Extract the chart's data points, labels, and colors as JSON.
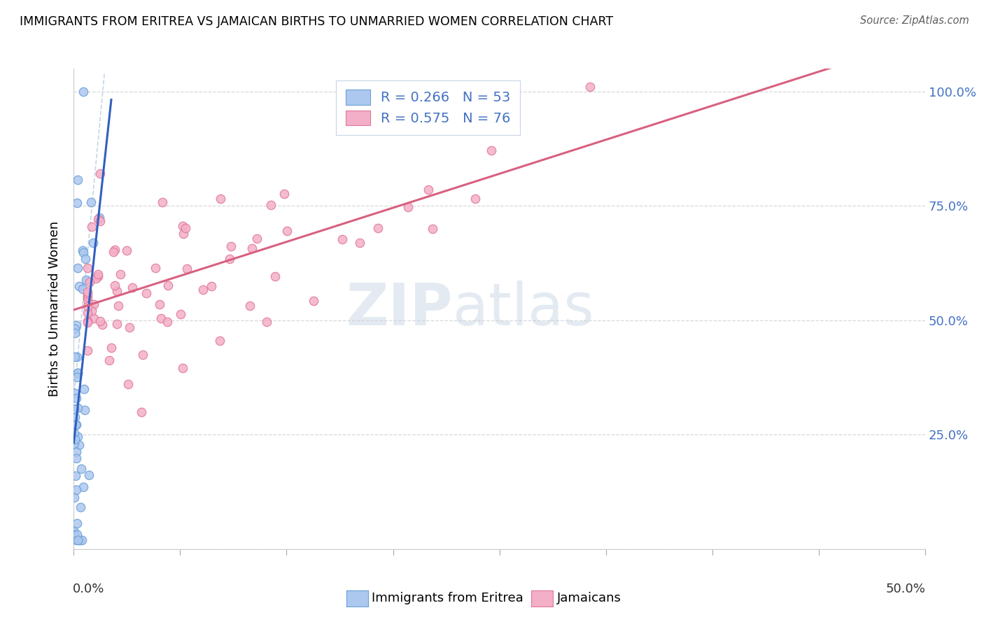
{
  "title": "IMMIGRANTS FROM ERITREA VS JAMAICAN BIRTHS TO UNMARRIED WOMEN CORRELATION CHART",
  "source": "Source: ZipAtlas.com",
  "ylabel": "Births to Unmarried Women",
  "yticks": [
    0.0,
    0.25,
    0.5,
    0.75,
    1.0
  ],
  "ytick_labels": [
    "",
    "25.0%",
    "50.0%",
    "75.0%",
    "100.0%"
  ],
  "xlim": [
    0.0,
    0.5
  ],
  "ylim": [
    0.0,
    1.05
  ],
  "xtick_left": "0.0%",
  "xtick_right": "50.0%",
  "legend_label_eritrea": "R = 0.266   N = 53",
  "legend_label_jamaican": "R = 0.575   N = 76",
  "bottom_label_eritrea": "Immigrants from Eritrea",
  "bottom_label_jamaican": "Jamaicans",
  "blue_face": "#adc8ef",
  "blue_edge": "#6a9fd8",
  "pink_face": "#f4afc8",
  "pink_edge": "#e07898",
  "blue_line": "#3060c0",
  "pink_line": "#d86080",
  "dash_line": "#b0c8e0",
  "grid_color": "#d8d8d8",
  "right_tick_color": "#4472c4",
  "watermark_zip_color": "#c0ccda",
  "watermark_atlas_color": "#c8d4e0"
}
